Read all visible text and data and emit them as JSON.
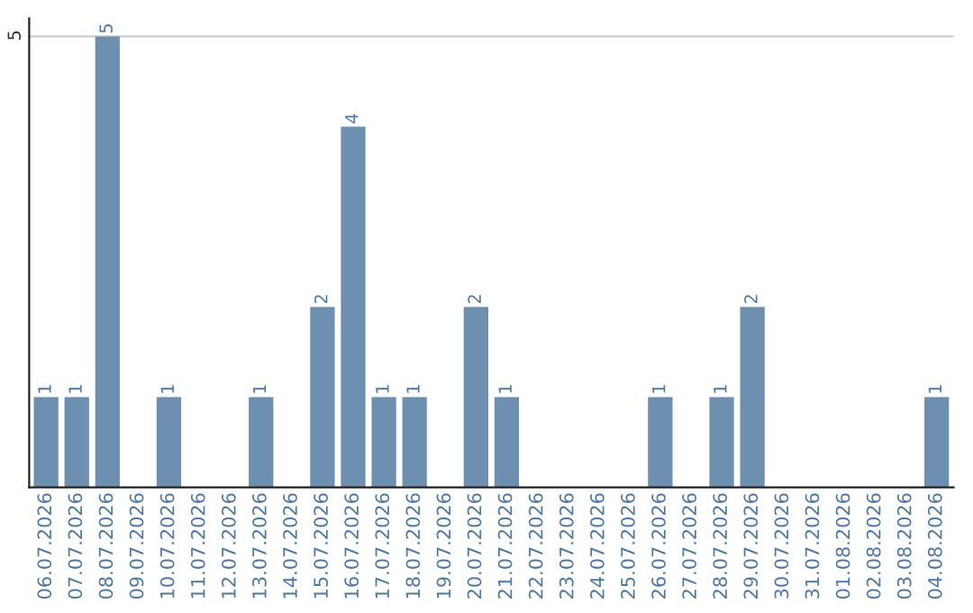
{
  "chart_data": {
    "type": "bar",
    "categories": [
      "06.07.2026",
      "07.07.2026",
      "08.07.2026",
      "09.07.2026",
      "10.07.2026",
      "11.07.2026",
      "12.07.2026",
      "13.07.2026",
      "14.07.2026",
      "15.07.2026",
      "16.07.2026",
      "17.07.2026",
      "18.07.2026",
      "19.07.2026",
      "20.07.2026",
      "21.07.2026",
      "22.07.2026",
      "23.07.2026",
      "24.07.2026",
      "25.07.2026",
      "26.07.2026",
      "27.07.2026",
      "28.07.2026",
      "29.07.2026",
      "30.07.2026",
      "31.07.2026",
      "01.08.2026",
      "02.08.2026",
      "03.08.2026",
      "04.08.2026"
    ],
    "values": [
      1,
      1,
      5,
      0,
      1,
      0,
      0,
      1,
      0,
      2,
      4,
      1,
      1,
      0,
      2,
      1,
      0,
      0,
      0,
      0,
      1,
      0,
      1,
      2,
      0,
      0,
      0,
      0,
      0,
      1
    ],
    "value_labels": [
      "1",
      "1",
      "5",
      null,
      "1",
      null,
      null,
      "1",
      null,
      "2",
      "4",
      "1",
      "1",
      null,
      "2",
      "1",
      null,
      null,
      null,
      null,
      "1",
      null,
      "1",
      "2",
      null,
      null,
      null,
      null,
      null,
      "1"
    ],
    "color": "#6d8fb0",
    "ylim": [
      0,
      5.2
    ],
    "yticks": [
      5
    ],
    "grid": "y",
    "legend": false
  }
}
